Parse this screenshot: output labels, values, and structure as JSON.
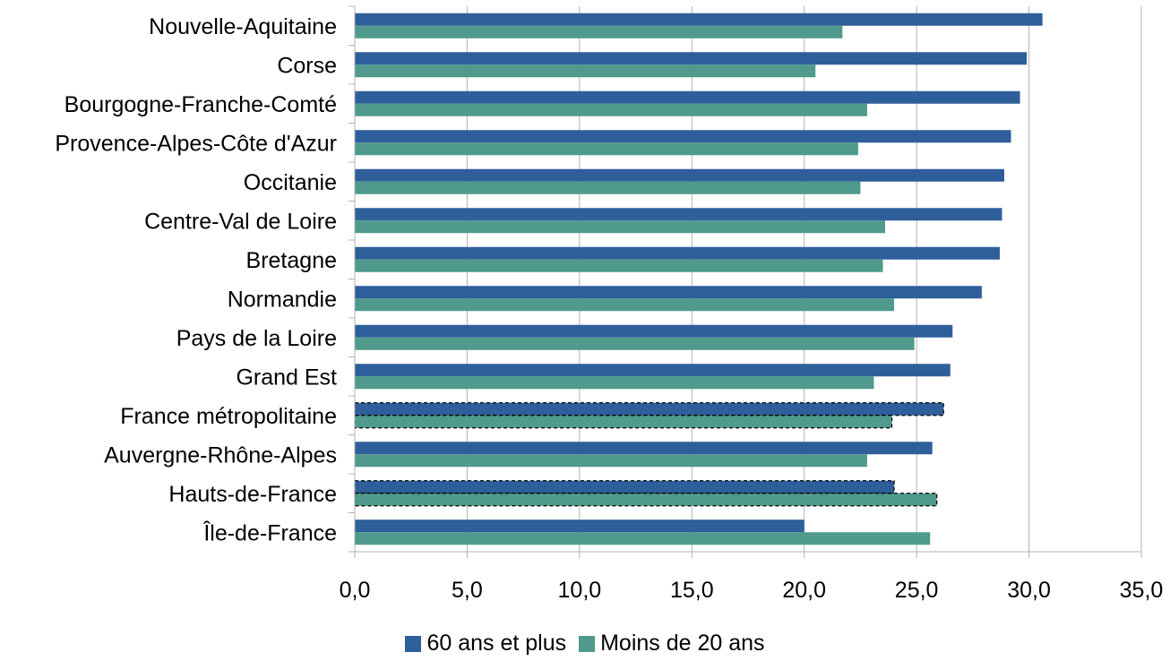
{
  "chart_data": {
    "type": "bar",
    "orientation": "horizontal",
    "categories": [
      "Nouvelle-Aquitaine",
      "Corse",
      "Bourgogne-Franche-Comté",
      "Provence-Alpes-Côte d'Azur",
      "Occitanie",
      "Centre-Val de Loire",
      "Bretagne",
      "Normandie",
      "Pays de la Loire",
      "Grand Est",
      "France métropolitaine",
      "Auvergne-Rhône-Alpes",
      "Hauts-de-France",
      "Île-de-France"
    ],
    "series": [
      {
        "name": "60 ans et plus",
        "color": "#2e5f9a",
        "values": [
          30.6,
          29.9,
          29.6,
          29.2,
          28.9,
          28.8,
          28.7,
          27.9,
          26.6,
          26.5,
          26.2,
          25.7,
          24.0,
          20.0
        ]
      },
      {
        "name": "Moins de 20 ans",
        "color": "#4f9a8c",
        "values": [
          21.7,
          20.5,
          22.8,
          22.4,
          22.5,
          23.6,
          23.5,
          24.0,
          24.9,
          23.1,
          23.9,
          22.8,
          25.9,
          25.6
        ]
      }
    ],
    "highlighted_categories": [
      "France métropolitaine",
      "Hauts-de-France"
    ],
    "xlim": [
      0,
      35
    ],
    "xticks": [
      "0,0",
      "5,0",
      "10,0",
      "15,0",
      "20,0",
      "25,0",
      "30,0",
      "35,0"
    ],
    "grid": true,
    "legend_position": "bottom"
  }
}
